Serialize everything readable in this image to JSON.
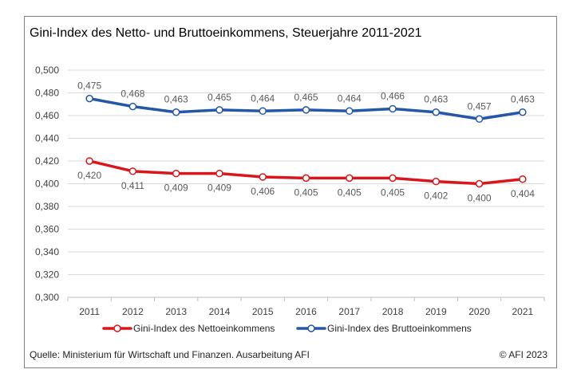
{
  "chart_data": {
    "type": "line",
    "title": "Gini-Index des Netto- und Bruttoeinkommens, Steuerjahre 2011-2021",
    "categories": [
      "2011",
      "2012",
      "2013",
      "2014",
      "2015",
      "2016",
      "2017",
      "2018",
      "2019",
      "2020",
      "2021"
    ],
    "ylim": [
      0.3,
      0.5
    ],
    "yticks": [
      "0,300",
      "0,320",
      "0,340",
      "0,360",
      "0,380",
      "0,400",
      "0,420",
      "0,440",
      "0,460",
      "0,480",
      "0,500"
    ],
    "grid": true,
    "legend_position": "bottom",
    "series": [
      {
        "name": "Gini-Index des Nettoeinkommens",
        "color": "#d9161c",
        "values": [
          0.42,
          0.411,
          0.409,
          0.409,
          0.406,
          0.405,
          0.405,
          0.405,
          0.402,
          0.4,
          0.404
        ],
        "labels": [
          "0,420",
          "0,411",
          "0,409",
          "0,409",
          "0,406",
          "0,405",
          "0,405",
          "0,405",
          "0,402",
          "0,400",
          "0,404"
        ],
        "label_position": "below"
      },
      {
        "name": "Gini-Index des Bruttoeinkommens",
        "color": "#2557a7",
        "values": [
          0.475,
          0.468,
          0.463,
          0.465,
          0.464,
          0.465,
          0.464,
          0.466,
          0.463,
          0.457,
          0.463
        ],
        "labels": [
          "0,475",
          "0,468",
          "0,463",
          "0,465",
          "0,464",
          "0,465",
          "0,464",
          "0,466",
          "0,463",
          "0,457",
          "0,463"
        ],
        "label_position": "above"
      }
    ],
    "source": "Quelle: Ministerium für Wirtschaft und Finanzen.  Ausarbeitung AFI",
    "copyright": "© AFI 2023"
  }
}
